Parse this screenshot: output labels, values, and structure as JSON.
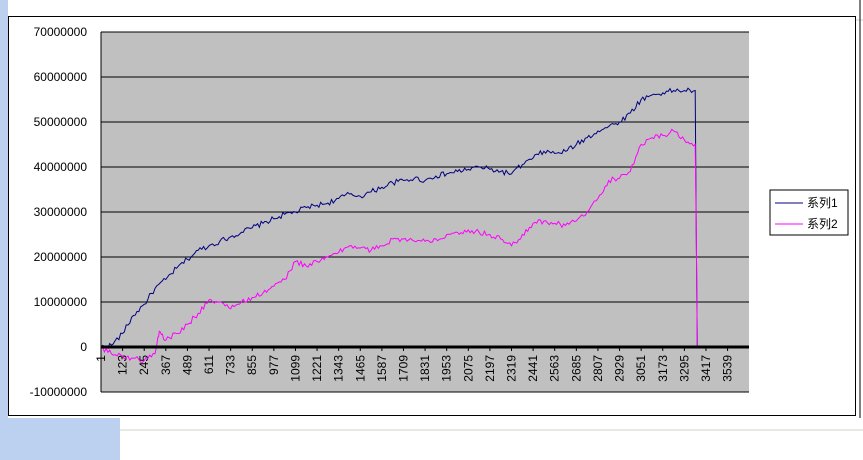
{
  "chart_data": {
    "type": "line",
    "title": "",
    "xlabel": "",
    "ylabel": "",
    "ylim": [
      -10000000,
      70000000
    ],
    "y_ticks": [
      "70000000",
      "60000000",
      "50000000",
      "40000000",
      "30000000",
      "20000000",
      "10000000",
      "0",
      "-10000000"
    ],
    "x_ticks": [
      "1",
      "123",
      "245",
      "367",
      "489",
      "611",
      "733",
      "855",
      "977",
      "1099",
      "1221",
      "1343",
      "1465",
      "1587",
      "1709",
      "1831",
      "1953",
      "2075",
      "2197",
      "2319",
      "2441",
      "2563",
      "2685",
      "2807",
      "2929",
      "3051",
      "3173",
      "3295",
      "3417",
      "3539"
    ],
    "x_range": [
      1,
      3660
    ],
    "grid": "horizontal major gridlines",
    "plot_background": "#c0c0c0",
    "legend_position": "right",
    "series": [
      {
        "name": "系列1",
        "color": "#000080",
        "points": [
          [
            1,
            0
          ],
          [
            60,
            400000
          ],
          [
            123,
            3000000
          ],
          [
            184,
            7000000
          ],
          [
            245,
            9500000
          ],
          [
            306,
            13000000
          ],
          [
            367,
            15000000
          ],
          [
            428,
            17500000
          ],
          [
            489,
            19500000
          ],
          [
            550,
            21500000
          ],
          [
            611,
            22500000
          ],
          [
            672,
            23500000
          ],
          [
            733,
            24500000
          ],
          [
            794,
            25500000
          ],
          [
            855,
            26500000
          ],
          [
            916,
            27500000
          ],
          [
            977,
            28500000
          ],
          [
            1038,
            29500000
          ],
          [
            1099,
            30000000
          ],
          [
            1160,
            31000000
          ],
          [
            1221,
            31500000
          ],
          [
            1282,
            32000000
          ],
          [
            1343,
            33000000
          ],
          [
            1404,
            34000000
          ],
          [
            1465,
            33500000
          ],
          [
            1526,
            34500000
          ],
          [
            1587,
            35500000
          ],
          [
            1648,
            36500000
          ],
          [
            1709,
            37000000
          ],
          [
            1770,
            37500000
          ],
          [
            1831,
            37000000
          ],
          [
            1892,
            38000000
          ],
          [
            1953,
            38500000
          ],
          [
            2014,
            39000000
          ],
          [
            2075,
            39500000
          ],
          [
            2136,
            40000000
          ],
          [
            2197,
            39500000
          ],
          [
            2258,
            39000000
          ],
          [
            2319,
            38500000
          ],
          [
            2380,
            40500000
          ],
          [
            2441,
            42000000
          ],
          [
            2502,
            43500000
          ],
          [
            2563,
            43000000
          ],
          [
            2624,
            43500000
          ],
          [
            2685,
            45000000
          ],
          [
            2746,
            46500000
          ],
          [
            2807,
            48000000
          ],
          [
            2868,
            49000000
          ],
          [
            2929,
            50000000
          ],
          [
            2990,
            52000000
          ],
          [
            3051,
            55000000
          ],
          [
            3112,
            56000000
          ],
          [
            3173,
            56500000
          ],
          [
            3234,
            57000000
          ],
          [
            3295,
            57000000
          ],
          [
            3356,
            57000000
          ],
          [
            3362,
            27000000
          ],
          [
            3368,
            0
          ],
          [
            3417,
            0
          ],
          [
            3539,
            0
          ],
          [
            3660,
            0
          ]
        ]
      },
      {
        "name": "系列2",
        "color": "#ff00ff",
        "points": [
          [
            1,
            0
          ],
          [
            60,
            -1500000
          ],
          [
            123,
            -2000000
          ],
          [
            184,
            -2500000
          ],
          [
            245,
            -3000000
          ],
          [
            306,
            -1500000
          ],
          [
            330,
            3500000
          ],
          [
            367,
            1500000
          ],
          [
            428,
            3000000
          ],
          [
            489,
            5000000
          ],
          [
            550,
            7500000
          ],
          [
            611,
            10500000
          ],
          [
            672,
            10000000
          ],
          [
            733,
            8500000
          ],
          [
            794,
            10000000
          ],
          [
            855,
            11000000
          ],
          [
            916,
            12000000
          ],
          [
            977,
            13500000
          ],
          [
            1038,
            15000000
          ],
          [
            1099,
            19000000
          ],
          [
            1160,
            18000000
          ],
          [
            1221,
            19000000
          ],
          [
            1282,
            20000000
          ],
          [
            1343,
            21000000
          ],
          [
            1404,
            22500000
          ],
          [
            1465,
            22000000
          ],
          [
            1526,
            21500000
          ],
          [
            1587,
            22500000
          ],
          [
            1648,
            24000000
          ],
          [
            1709,
            24000000
          ],
          [
            1770,
            23500000
          ],
          [
            1831,
            23500000
          ],
          [
            1892,
            24000000
          ],
          [
            1953,
            25000000
          ],
          [
            2014,
            25500000
          ],
          [
            2075,
            26000000
          ],
          [
            2136,
            25500000
          ],
          [
            2197,
            25000000
          ],
          [
            2258,
            24000000
          ],
          [
            2319,
            22500000
          ],
          [
            2380,
            25000000
          ],
          [
            2441,
            27500000
          ],
          [
            2502,
            28000000
          ],
          [
            2563,
            27500000
          ],
          [
            2624,
            27000000
          ],
          [
            2685,
            28000000
          ],
          [
            2746,
            30000000
          ],
          [
            2807,
            33000000
          ],
          [
            2868,
            37000000
          ],
          [
            2929,
            37500000
          ],
          [
            2990,
            39000000
          ],
          [
            3051,
            45000000
          ],
          [
            3112,
            46500000
          ],
          [
            3173,
            47000000
          ],
          [
            3234,
            48000000
          ],
          [
            3295,
            46000000
          ],
          [
            3356,
            45000000
          ],
          [
            3362,
            27000000
          ],
          [
            3368,
            0
          ],
          [
            3417,
            0
          ],
          [
            3539,
            0
          ],
          [
            3660,
            0
          ]
        ]
      }
    ]
  }
}
